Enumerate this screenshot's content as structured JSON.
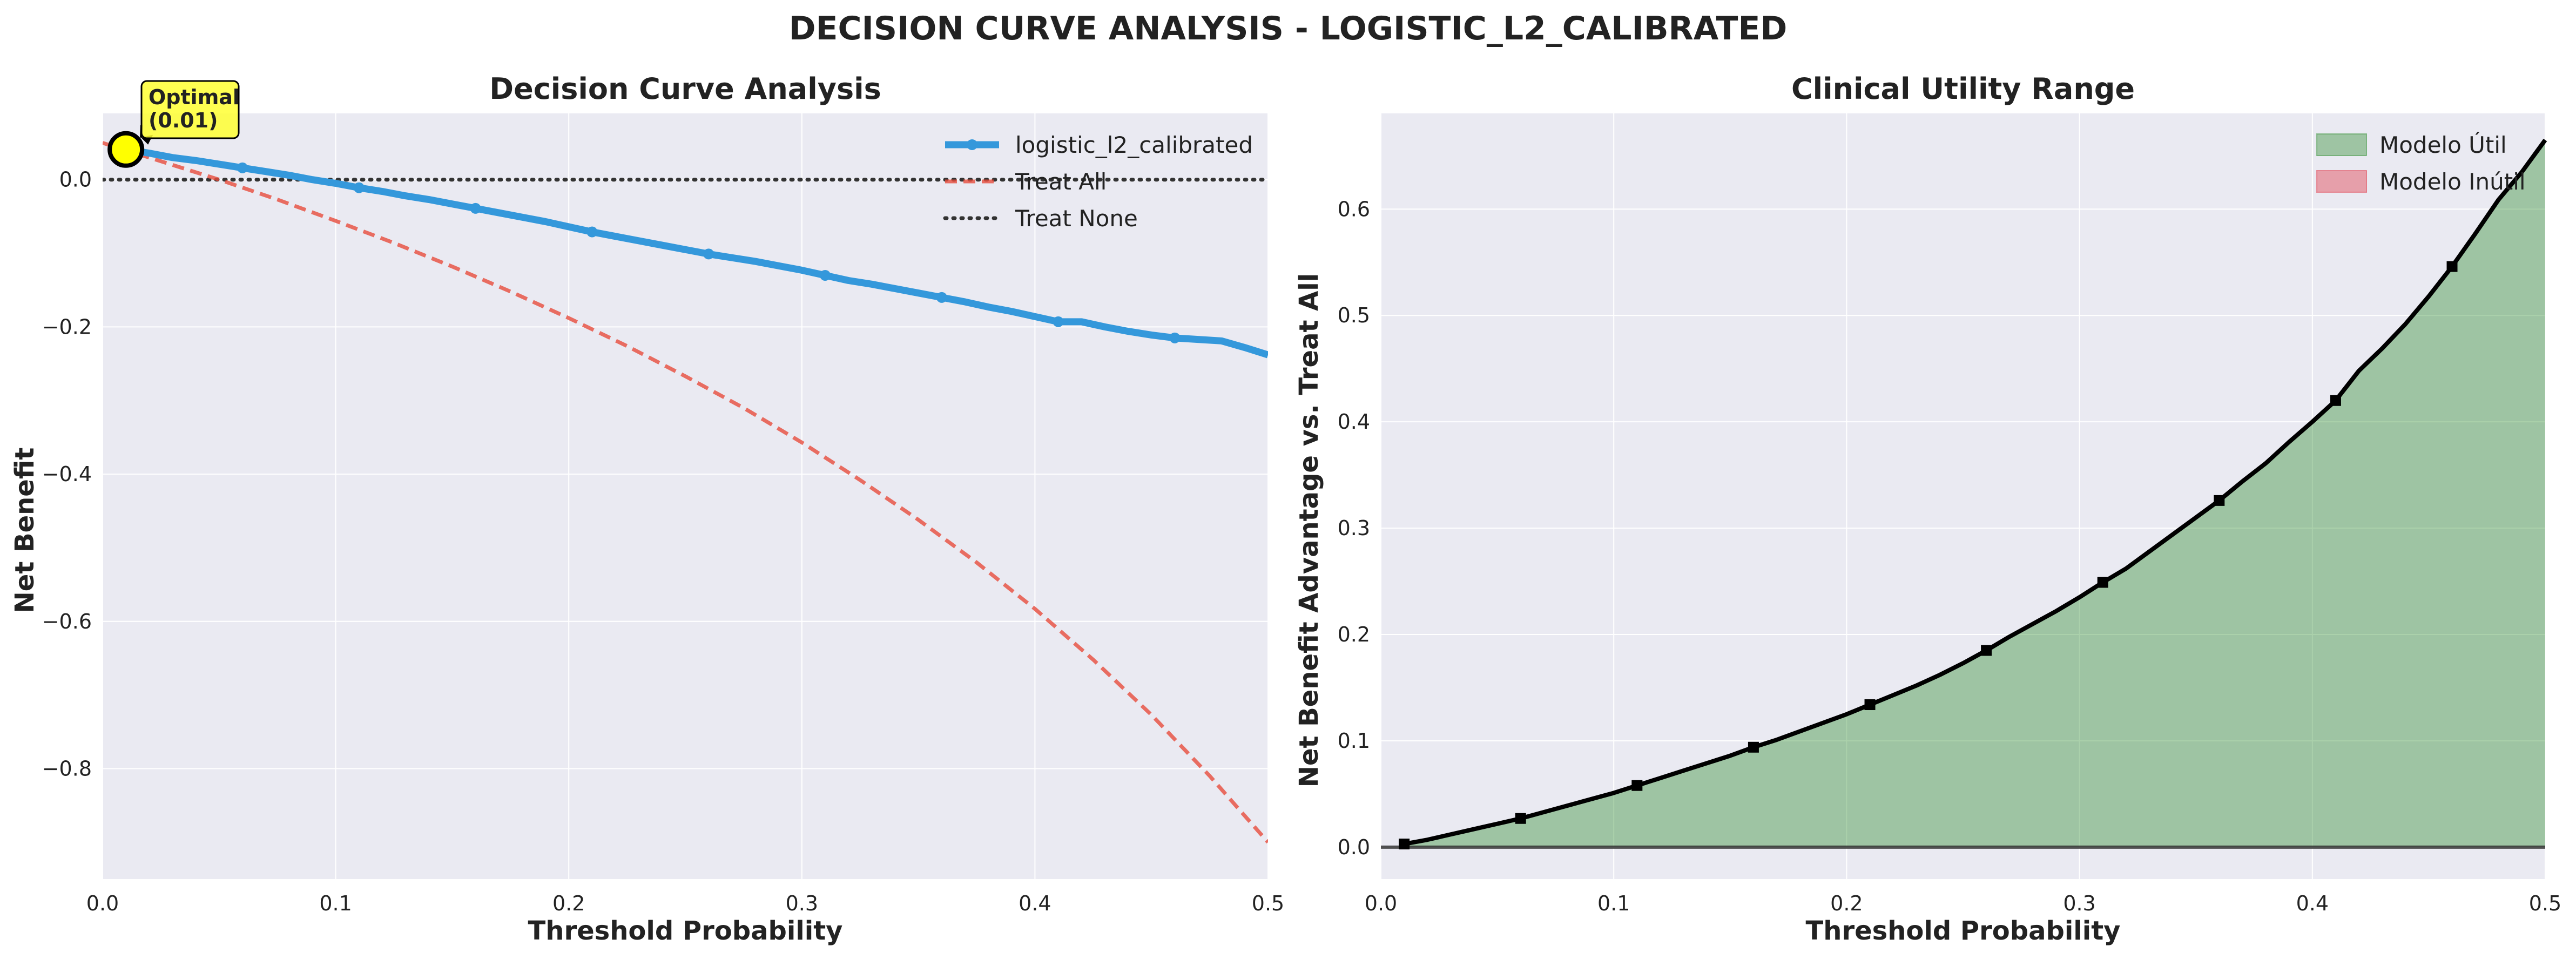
{
  "figure": {
    "title": "DECISION CURVE ANALYSIS - LOGISTIC_L2_CALIBRATED"
  },
  "colors": {
    "background": "#ffffff",
    "plot_bg": "#eaeaf2",
    "grid": "#ffffff",
    "model_line": "#3498db",
    "treat_all": "#e74c3c",
    "treat_none": "#333333",
    "useful_fill": "#2e8b2e",
    "useless_fill": "#e0303f",
    "advantage_line": "#000000",
    "optimal_marker": "#ffff00"
  },
  "chart_data": [
    {
      "type": "line",
      "title": "Decision Curve Analysis",
      "xlabel": "Threshold Probability",
      "ylabel": "Net Benefit",
      "xlim": [
        0.0,
        0.5
      ],
      "ylim": [
        -0.95,
        0.09
      ],
      "xticks": [
        0.0,
        0.1,
        0.2,
        0.3,
        0.4,
        0.5
      ],
      "xtick_labels": [
        "0.0",
        "0.1",
        "0.2",
        "0.3",
        "0.4",
        "0.5"
      ],
      "yticks": [
        0.0,
        -0.2,
        -0.4,
        -0.6,
        -0.8
      ],
      "ytick_labels": [
        "0.0",
        "−0.2",
        "−0.4",
        "−0.6",
        "−0.8"
      ],
      "grid": true,
      "legend_position": "top-right",
      "series": [
        {
          "name": "logistic_l2_calibrated",
          "style": "solid-markers",
          "x": [
            0.01,
            0.02,
            0.03,
            0.04,
            0.05,
            0.06,
            0.07,
            0.08,
            0.09,
            0.1,
            0.11,
            0.12,
            0.13,
            0.14,
            0.15,
            0.16,
            0.17,
            0.18,
            0.19,
            0.2,
            0.21,
            0.22,
            0.23,
            0.24,
            0.25,
            0.26,
            0.27,
            0.28,
            0.29,
            0.3,
            0.31,
            0.32,
            0.33,
            0.34,
            0.35,
            0.36,
            0.37,
            0.38,
            0.39,
            0.4,
            0.41,
            0.42,
            0.43,
            0.44,
            0.45,
            0.46,
            0.47,
            0.48,
            0.49,
            0.5
          ],
          "y": [
            0.041,
            0.036,
            0.03,
            0.026,
            0.021,
            0.016,
            0.011,
            0.006,
            0.0,
            -0.005,
            -0.011,
            -0.016,
            -0.022,
            -0.027,
            -0.033,
            -0.039,
            -0.045,
            -0.051,
            -0.057,
            -0.064,
            -0.071,
            -0.077,
            -0.083,
            -0.089,
            -0.095,
            -0.101,
            -0.106,
            -0.111,
            -0.117,
            -0.123,
            -0.13,
            -0.137,
            -0.142,
            -0.148,
            -0.154,
            -0.16,
            -0.166,
            -0.173,
            -0.179,
            -0.186,
            -0.193,
            -0.193,
            -0.2,
            -0.206,
            -0.211,
            -0.215,
            -0.217,
            -0.219,
            -0.228,
            -0.238
          ],
          "markers_every": 5
        },
        {
          "name": "Treat All",
          "style": "dashed",
          "x": [
            0.0,
            0.025,
            0.05,
            0.075,
            0.1,
            0.125,
            0.15,
            0.175,
            0.2,
            0.225,
            0.25,
            0.275,
            0.3,
            0.325,
            0.35,
            0.375,
            0.4,
            0.425,
            0.45,
            0.475,
            0.5
          ],
          "y": [
            0.05,
            0.025,
            0.0,
            -0.027,
            -0.056,
            -0.086,
            -0.118,
            -0.152,
            -0.188,
            -0.226,
            -0.267,
            -0.31,
            -0.357,
            -0.408,
            -0.462,
            -0.52,
            -0.583,
            -0.652,
            -0.727,
            -0.81,
            -0.9
          ]
        },
        {
          "name": "Treat None",
          "style": "dotted",
          "x": [
            0.0,
            0.5
          ],
          "y": [
            0.0,
            0.0
          ]
        }
      ],
      "annotation": {
        "text_line1": "Optimal",
        "text_line2": "(0.01)",
        "x": 0.01,
        "y": 0.041
      }
    },
    {
      "type": "area",
      "title": "Clinical Utility Range",
      "xlabel": "Threshold Probability",
      "ylabel": "Net Benefit Advantage vs. Treat All",
      "xlim": [
        0.0,
        0.5
      ],
      "ylim": [
        -0.03,
        0.69
      ],
      "xticks": [
        0.0,
        0.1,
        0.2,
        0.3,
        0.4,
        0.5
      ],
      "xtick_labels": [
        "0.0",
        "0.1",
        "0.2",
        "0.3",
        "0.4",
        "0.5"
      ],
      "yticks": [
        0.0,
        0.1,
        0.2,
        0.3,
        0.4,
        0.5,
        0.6
      ],
      "ytick_labels": [
        "0.0",
        "0.1",
        "0.2",
        "0.3",
        "0.4",
        "0.5",
        "0.6"
      ],
      "grid": true,
      "legend_position": "top-right",
      "legend": [
        "Modelo Útil",
        "Modelo Inútil"
      ],
      "series": [
        {
          "name": "advantage",
          "x": [
            0.01,
            0.02,
            0.03,
            0.04,
            0.05,
            0.06,
            0.07,
            0.08,
            0.09,
            0.1,
            0.11,
            0.12,
            0.13,
            0.14,
            0.15,
            0.16,
            0.17,
            0.18,
            0.19,
            0.2,
            0.21,
            0.22,
            0.23,
            0.24,
            0.25,
            0.26,
            0.27,
            0.28,
            0.29,
            0.3,
            0.31,
            0.32,
            0.33,
            0.34,
            0.35,
            0.36,
            0.37,
            0.38,
            0.39,
            0.4,
            0.41,
            0.42,
            0.43,
            0.44,
            0.45,
            0.46,
            0.47,
            0.48,
            0.49,
            0.5
          ],
          "y": [
            0.003,
            0.007,
            0.012,
            0.017,
            0.022,
            0.027,
            0.033,
            0.039,
            0.045,
            0.051,
            0.058,
            0.065,
            0.072,
            0.079,
            0.086,
            0.094,
            0.101,
            0.109,
            0.117,
            0.125,
            0.134,
            0.143,
            0.152,
            0.162,
            0.173,
            0.185,
            0.198,
            0.21,
            0.222,
            0.235,
            0.249,
            0.262,
            0.278,
            0.294,
            0.31,
            0.326,
            0.344,
            0.361,
            0.381,
            0.4,
            0.42,
            0.448,
            0.469,
            0.492,
            0.518,
            0.546,
            0.577,
            0.609,
            0.635,
            0.665
          ],
          "markers_every": 5
        }
      ]
    }
  ]
}
